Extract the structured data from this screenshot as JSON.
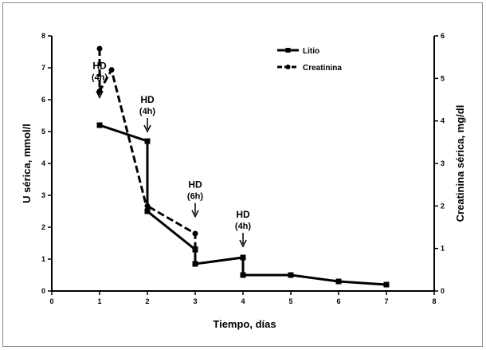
{
  "chart_data": {
    "type": "line",
    "title": "",
    "xlabel": "Tiempo, días",
    "ylabel_left": "U sérica, mmol/l",
    "ylabel_right": "Creatinina sérica, mg/dl",
    "xlim": [
      0,
      8
    ],
    "ylim_left": [
      0,
      8
    ],
    "ylim_right": [
      0,
      6
    ],
    "x_ticks": [
      "0",
      "1",
      "2",
      "3",
      "4",
      "5",
      "6",
      "7",
      "8"
    ],
    "y_ticks_left": [
      "0",
      "1",
      "2",
      "3",
      "4",
      "5",
      "6",
      "7",
      "8"
    ],
    "y_ticks_right": [
      "0",
      "1",
      "2",
      "3",
      "4",
      "5",
      "6"
    ],
    "grid": false,
    "legend_position": "top-right",
    "series": [
      {
        "name": "Litio",
        "axis": "left",
        "marker": "square",
        "points": [
          [
            1,
            5.2
          ],
          [
            2,
            4.7
          ],
          [
            2,
            2.5
          ],
          [
            3,
            1.3
          ],
          [
            3,
            0.85
          ],
          [
            4,
            1.05
          ],
          [
            4,
            0.5
          ],
          [
            5,
            0.5
          ],
          [
            6,
            0.3
          ],
          [
            7,
            0.2
          ]
        ]
      },
      {
        "name": "Creatinina",
        "axis": "right",
        "marker": "circle",
        "dashed": true,
        "points": [
          [
            1,
            5.7
          ],
          [
            1,
            4.7
          ],
          [
            1.25,
            5.2
          ],
          [
            2,
            1.9
          ],
          [
            2,
            2.0
          ],
          [
            3,
            1.35
          ],
          [
            3,
            1.0
          ]
        ]
      }
    ],
    "annotations": [
      {
        "line1": "HD",
        "line2": "(4h)",
        "x": 1,
        "y_right": 4.55
      },
      {
        "line1": "HD",
        "line2": "(4h)",
        "x": 2,
        "y_right": 3.75
      },
      {
        "line1": "HD",
        "line2": "(6h)",
        "x": 3,
        "y_right": 1.75
      },
      {
        "line1": "HD",
        "line2": "(4h)",
        "x": 4,
        "y_right": 1.05
      }
    ]
  }
}
